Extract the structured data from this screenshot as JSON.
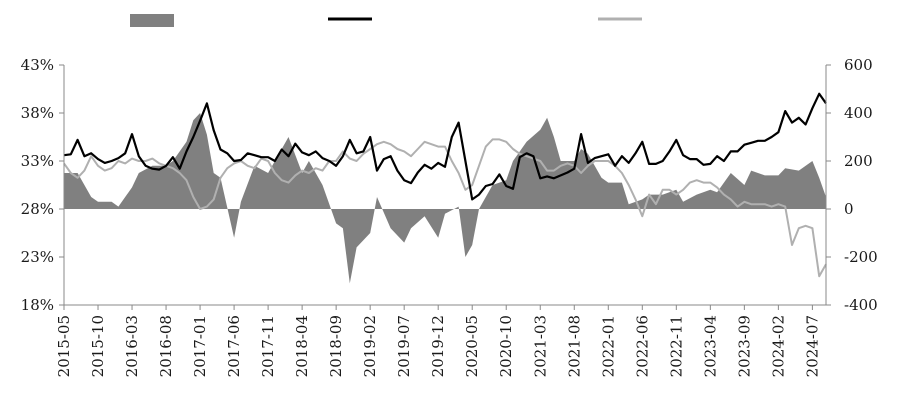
{
  "chart_data": {
    "type": "line",
    "title": "",
    "legend": {
      "placement": "top",
      "entries": [
        {
          "kind": "area",
          "color": "#808080"
        },
        {
          "kind": "line",
          "color": "#000000"
        },
        {
          "kind": "line",
          "color": "#b0b0b0"
        }
      ]
    },
    "x_tick_labels": [
      "2015-05",
      "2015-10",
      "2016-03",
      "2016-08",
      "2017-01",
      "2017-06",
      "2017-11",
      "2018-04",
      "2018-09",
      "2019-02",
      "2019-07",
      "2019-12",
      "2020-05",
      "2020-10",
      "2021-03",
      "2021-08",
      "2022-01",
      "2022-06",
      "2022-11",
      "2023-04",
      "2023-09",
      "2024-02",
      "2024-07"
    ],
    "y_left": {
      "ticks": [
        0.18,
        0.23,
        0.28,
        0.33,
        0.38,
        0.43
      ],
      "tick_labels": [
        "18%",
        "23%",
        "28%",
        "33%",
        "38%",
        "43%"
      ],
      "range": [
        0.18,
        0.43
      ]
    },
    "y_right": {
      "ticks": [
        -400,
        -200,
        0,
        200,
        400,
        600
      ],
      "tick_labels": [
        "-400",
        "-200",
        "0",
        "200",
        "400",
        "600"
      ],
      "range": [
        -400,
        600
      ]
    },
    "grid": false,
    "series": [
      {
        "axis": "right",
        "style": "area",
        "color": "#808080",
        "x": [
          "2015-05",
          "2015-07",
          "2015-09",
          "2015-10",
          "2015-12",
          "2016-01",
          "2016-03",
          "2016-04",
          "2016-06",
          "2016-08",
          "2016-09",
          "2016-11",
          "2016-12",
          "2017-01",
          "2017-02",
          "2017-03",
          "2017-04",
          "2017-06",
          "2017-07",
          "2017-09",
          "2017-11",
          "2017-12",
          "2018-02",
          "2018-04",
          "2018-05",
          "2018-07",
          "2018-09",
          "2018-10",
          "2018-11",
          "2018-12",
          "2019-02",
          "2019-03",
          "2019-05",
          "2019-07",
          "2019-08",
          "2019-10",
          "2019-12",
          "2020-01",
          "2020-03",
          "2020-04",
          "2020-05",
          "2020-06",
          "2020-08",
          "2020-10",
          "2020-11",
          "2021-01",
          "2021-03",
          "2021-04",
          "2021-05",
          "2021-06",
          "2021-08",
          "2021-09",
          "2021-10",
          "2021-12",
          "2022-01",
          "2022-03",
          "2022-04",
          "2022-06",
          "2022-07",
          "2022-09",
          "2022-11",
          "2022-12",
          "2023-02",
          "2023-04",
          "2023-05",
          "2023-07",
          "2023-09",
          "2023-10",
          "2023-12",
          "2024-02",
          "2024-03",
          "2024-05",
          "2024-07",
          "2024-08",
          "2024-09"
        ],
        "values": [
          150,
          150,
          50,
          30,
          30,
          10,
          90,
          150,
          180,
          180,
          200,
          280,
          370,
          400,
          310,
          150,
          130,
          -120,
          30,
          180,
          150,
          200,
          300,
          150,
          200,
          100,
          -60,
          -80,
          -310,
          -160,
          -100,
          50,
          -80,
          -140,
          -80,
          -30,
          -120,
          -20,
          10,
          -200,
          -150,
          0,
          100,
          120,
          200,
          280,
          330,
          380,
          300,
          200,
          200,
          250,
          230,
          130,
          110,
          110,
          20,
          40,
          60,
          60,
          80,
          30,
          60,
          80,
          70,
          150,
          100,
          160,
          140,
          140,
          170,
          160,
          200,
          130,
          50
        ]
      },
      {
        "axis": "left",
        "style": "line",
        "color": "#000000",
        "x": [
          "2015-05",
          "2015-06",
          "2015-07",
          "2015-08",
          "2015-09",
          "2015-10",
          "2015-11",
          "2015-12",
          "2016-01",
          "2016-02",
          "2016-03",
          "2016-04",
          "2016-05",
          "2016-06",
          "2016-07",
          "2016-08",
          "2016-09",
          "2016-10",
          "2016-11",
          "2016-12",
          "2017-01",
          "2017-02",
          "2017-03",
          "2017-04",
          "2017-05",
          "2017-06",
          "2017-07",
          "2017-08",
          "2017-09",
          "2017-10",
          "2017-11",
          "2017-12",
          "2018-01",
          "2018-02",
          "2018-03",
          "2018-04",
          "2018-05",
          "2018-06",
          "2018-07",
          "2018-08",
          "2018-09",
          "2018-10",
          "2018-11",
          "2018-12",
          "2019-01",
          "2019-02",
          "2019-03",
          "2019-04",
          "2019-05",
          "2019-06",
          "2019-07",
          "2019-08",
          "2019-09",
          "2019-10",
          "2019-11",
          "2019-12",
          "2020-01",
          "2020-02",
          "2020-03",
          "2020-04",
          "2020-05",
          "2020-06",
          "2020-07",
          "2020-08",
          "2020-09",
          "2020-10",
          "2020-11",
          "2020-12",
          "2021-01",
          "2021-02",
          "2021-03",
          "2021-04",
          "2021-05",
          "2021-06",
          "2021-07",
          "2021-08",
          "2021-09",
          "2021-10",
          "2021-11",
          "2021-12",
          "2022-01",
          "2022-02",
          "2022-03",
          "2022-04",
          "2022-05",
          "2022-06",
          "2022-07",
          "2022-08",
          "2022-09",
          "2022-10",
          "2022-11",
          "2022-12",
          "2023-01",
          "2023-02",
          "2023-03",
          "2023-04",
          "2023-05",
          "2023-06",
          "2023-07",
          "2023-08",
          "2023-09",
          "2023-10",
          "2023-11",
          "2023-12",
          "2024-01",
          "2024-02",
          "2024-03",
          "2024-04",
          "2024-05",
          "2024-06",
          "2024-07",
          "2024-08",
          "2024-09"
        ],
        "values": [
          0.336,
          0.337,
          0.352,
          0.335,
          0.338,
          0.332,
          0.328,
          0.33,
          0.333,
          0.338,
          0.358,
          0.335,
          0.325,
          0.322,
          0.321,
          0.325,
          0.334,
          0.322,
          0.34,
          0.355,
          0.372,
          0.39,
          0.362,
          0.342,
          0.338,
          0.33,
          0.331,
          0.338,
          0.336,
          0.334,
          0.334,
          0.33,
          0.342,
          0.335,
          0.348,
          0.339,
          0.336,
          0.34,
          0.333,
          0.33,
          0.325,
          0.335,
          0.352,
          0.338,
          0.34,
          0.355,
          0.32,
          0.332,
          0.335,
          0.32,
          0.31,
          0.307,
          0.318,
          0.326,
          0.322,
          0.328,
          0.324,
          0.355,
          0.37,
          0.33,
          0.29,
          0.295,
          0.304,
          0.306,
          0.316,
          0.304,
          0.301,
          0.334,
          0.338,
          0.335,
          0.312,
          0.314,
          0.312,
          0.315,
          0.318,
          0.322,
          0.358,
          0.328,
          0.333,
          0.335,
          0.337,
          0.325,
          0.335,
          0.328,
          0.338,
          0.35,
          0.327,
          0.327,
          0.33,
          0.34,
          0.352,
          0.336,
          0.332,
          0.332,
          0.326,
          0.327,
          0.335,
          0.33,
          0.34,
          0.34,
          0.347,
          0.349,
          0.351,
          0.351,
          0.355,
          0.36,
          0.382,
          0.37,
          0.375,
          0.368,
          0.385,
          0.4,
          0.39
        ]
      },
      {
        "axis": "right",
        "style": "line",
        "color": "#b0b0b0",
        "x": [
          "2015-05",
          "2015-06",
          "2015-07",
          "2015-08",
          "2015-09",
          "2015-10",
          "2015-11",
          "2015-12",
          "2016-01",
          "2016-02",
          "2016-03",
          "2016-04",
          "2016-05",
          "2016-06",
          "2016-07",
          "2016-08",
          "2016-09",
          "2016-10",
          "2016-11",
          "2016-12",
          "2017-01",
          "2017-02",
          "2017-03",
          "2017-04",
          "2017-05",
          "2017-06",
          "2017-07",
          "2017-08",
          "2017-09",
          "2017-10",
          "2017-11",
          "2017-12",
          "2018-01",
          "2018-02",
          "2018-03",
          "2018-04",
          "2018-05",
          "2018-06",
          "2018-07",
          "2018-08",
          "2018-09",
          "2018-10",
          "2018-11",
          "2018-12",
          "2019-01",
          "2019-02",
          "2019-03",
          "2019-04",
          "2019-05",
          "2019-06",
          "2019-07",
          "2019-08",
          "2019-09",
          "2019-10",
          "2019-11",
          "2019-12",
          "2020-01",
          "2020-02",
          "2020-03",
          "2020-04",
          "2020-05",
          "2020-06",
          "2020-07",
          "2020-08",
          "2020-09",
          "2020-10",
          "2020-11",
          "2020-12",
          "2021-01",
          "2021-02",
          "2021-03",
          "2021-04",
          "2021-05",
          "2021-06",
          "2021-07",
          "2021-08",
          "2021-09",
          "2021-10",
          "2021-11",
          "2021-12",
          "2022-01",
          "2022-02",
          "2022-03",
          "2022-04",
          "2022-05",
          "2022-06",
          "2022-07",
          "2022-08",
          "2022-09",
          "2022-10",
          "2022-11",
          "2022-12",
          "2023-01",
          "2023-02",
          "2023-03",
          "2023-04",
          "2023-05",
          "2023-06",
          "2023-07",
          "2023-08",
          "2023-09",
          "2023-10",
          "2023-11",
          "2023-12",
          "2024-01",
          "2024-02",
          "2024-03",
          "2024-04",
          "2024-05",
          "2024-06",
          "2024-07",
          "2024-08",
          "2024-09"
        ],
        "values": [
          190,
          150,
          130,
          160,
          220,
          180,
          160,
          170,
          200,
          190,
          210,
          200,
          200,
          210,
          190,
          180,
          170,
          150,
          120,
          50,
          0,
          10,
          40,
          130,
          170,
          190,
          200,
          180,
          170,
          210,
          200,
          150,
          120,
          110,
          140,
          160,
          150,
          170,
          160,
          200,
          200,
          240,
          210,
          200,
          230,
          250,
          270,
          280,
          270,
          250,
          240,
          220,
          250,
          280,
          270,
          260,
          260,
          200,
          150,
          80,
          100,
          180,
          260,
          290,
          290,
          280,
          250,
          230,
          220,
          210,
          200,
          160,
          160,
          180,
          190,
          180,
          150,
          180,
          200,
          200,
          200,
          180,
          150,
          100,
          40,
          -30,
          60,
          20,
          80,
          80,
          60,
          80,
          110,
          120,
          110,
          110,
          90,
          60,
          40,
          10,
          30,
          20,
          20,
          20,
          10,
          20,
          10,
          -150,
          -80,
          -70,
          -80,
          -280,
          -230
        ]
      }
    ]
  }
}
